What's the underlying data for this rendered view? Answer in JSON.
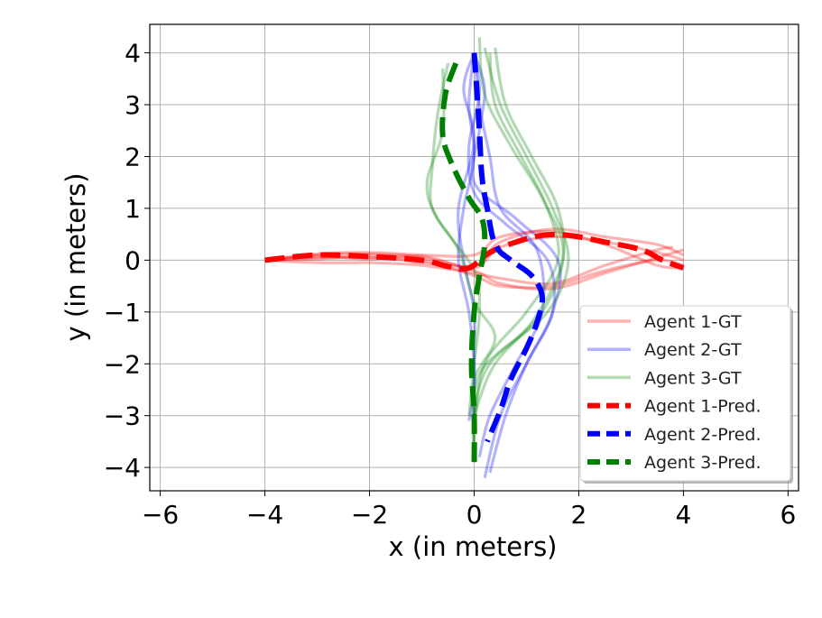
{
  "chart_data": {
    "type": "line",
    "title": "",
    "xlabel": "x (in meters)",
    "ylabel": "y (in meters)",
    "xlim": [
      -6.2,
      6.2
    ],
    "ylim": [
      -4.45,
      4.55
    ],
    "xticks": [
      -6,
      -4,
      -2,
      0,
      2,
      4,
      6
    ],
    "yticks": [
      -4,
      -3,
      -2,
      -1,
      0,
      1,
      2,
      3,
      4
    ],
    "xtick_labels": [
      "−6",
      "−4",
      "−2",
      "0",
      "2",
      "4",
      "6"
    ],
    "ytick_labels": [
      "−4",
      "−3",
      "−2",
      "−1",
      "0",
      "1",
      "2",
      "3",
      "4"
    ],
    "grid": true,
    "legend_position": "lower-right",
    "series": [
      {
        "name": "Agent 1-GT",
        "color": "#ff0000",
        "style": "solid",
        "opacity": 0.3,
        "lines": [
          [
            [
              -4,
              0
            ],
            [
              -3,
              0.1
            ],
            [
              -2,
              0.12
            ],
            [
              -1,
              0.05
            ],
            [
              0,
              -0.2
            ],
            [
              0.5,
              -0.45
            ],
            [
              1.5,
              -0.55
            ],
            [
              2.5,
              -0.25
            ],
            [
              3.5,
              0.05
            ],
            [
              4,
              0.2
            ]
          ],
          [
            [
              -4,
              0
            ],
            [
              -3,
              0.05
            ],
            [
              -2,
              0.05
            ],
            [
              -1,
              0
            ],
            [
              0,
              -0.3
            ],
            [
              0.5,
              -0.5
            ],
            [
              1.5,
              -0.5
            ],
            [
              2.5,
              -0.2
            ],
            [
              3.5,
              0
            ],
            [
              4,
              -0.1
            ]
          ],
          [
            [
              -4,
              0
            ],
            [
              -3,
              0.02
            ],
            [
              -2,
              0.08
            ],
            [
              -1,
              -0.05
            ],
            [
              0,
              -0.1
            ],
            [
              0.5,
              0.35
            ],
            [
              1.5,
              0.6
            ],
            [
              2.5,
              0.45
            ],
            [
              3.5,
              0.3
            ],
            [
              4,
              0.1
            ]
          ],
          [
            [
              -4,
              0
            ],
            [
              -3,
              0.08
            ],
            [
              -2,
              0.02
            ],
            [
              -1,
              0.08
            ],
            [
              0,
              -0.15
            ],
            [
              0.5,
              0.25
            ],
            [
              1.5,
              0.45
            ],
            [
              2.5,
              0.35
            ],
            [
              3.5,
              0.15
            ],
            [
              4,
              0
            ]
          ],
          [
            [
              -4,
              0
            ],
            [
              -3,
              -0.05
            ],
            [
              -2,
              -0.05
            ],
            [
              -1,
              -0.1
            ],
            [
              0,
              -0.25
            ],
            [
              0.5,
              -0.35
            ],
            [
              1.5,
              -0.45
            ],
            [
              2.5,
              -0.1
            ],
            [
              3.5,
              0.2
            ],
            [
              3.8,
              0.25
            ]
          ],
          [
            [
              -4,
              0
            ],
            [
              -3,
              0.12
            ],
            [
              -2,
              0.15
            ],
            [
              -1,
              0.1
            ],
            [
              0,
              0.1
            ],
            [
              0.5,
              0.45
            ],
            [
              1.5,
              0.55
            ],
            [
              2.5,
              0.3
            ],
            [
              3.5,
              -0.1
            ],
            [
              4,
              -0.15
            ]
          ]
        ]
      },
      {
        "name": "Agent 2-GT",
        "color": "#0000ff",
        "style": "solid",
        "opacity": 0.3,
        "lines": [
          [
            [
              0,
              4
            ],
            [
              0.1,
              3.2
            ],
            [
              -0.1,
              2.2
            ],
            [
              0,
              1.3
            ],
            [
              0.6,
              0.7
            ],
            [
              1.4,
              0
            ],
            [
              1.5,
              -1
            ],
            [
              1,
              -2
            ],
            [
              0.6,
              -3
            ],
            [
              0.3,
              -4.1
            ]
          ],
          [
            [
              0,
              4
            ],
            [
              -0.1,
              3
            ],
            [
              0,
              2
            ],
            [
              -0.2,
              1
            ],
            [
              -0.3,
              0
            ],
            [
              -0.1,
              -1
            ],
            [
              0,
              -2
            ],
            [
              0,
              -2.5
            ],
            [
              -0.1,
              -3.1
            ]
          ],
          [
            [
              0,
              4
            ],
            [
              0.2,
              3.3
            ],
            [
              0.1,
              2.5
            ],
            [
              0,
              1.5
            ],
            [
              0.8,
              0.8
            ],
            [
              1.6,
              0
            ],
            [
              1.5,
              -1
            ],
            [
              1,
              -2
            ],
            [
              0.5,
              -3
            ],
            [
              0.2,
              -4.2
            ]
          ],
          [
            [
              0,
              4
            ],
            [
              -0.2,
              3.3
            ],
            [
              0,
              2.3
            ],
            [
              -0.3,
              1
            ],
            [
              -0.2,
              0
            ],
            [
              0,
              -1
            ],
            [
              0,
              -2
            ],
            [
              0,
              -3
            ]
          ],
          [
            [
              0,
              4
            ],
            [
              0.1,
              3
            ],
            [
              0.3,
              2
            ],
            [
              0.5,
              1
            ],
            [
              1.2,
              0.2
            ],
            [
              1.3,
              -1
            ],
            [
              0.8,
              -2
            ],
            [
              0.3,
              -3
            ],
            [
              0.1,
              -3.8
            ]
          ]
        ]
      },
      {
        "name": "Agent 3-GT",
        "color": "#008000",
        "style": "solid",
        "opacity": 0.3,
        "lines": [
          [
            [
              -0.5,
              3.8
            ],
            [
              -0.7,
              2.8
            ],
            [
              -0.8,
              1.8
            ],
            [
              -0.8,
              1
            ],
            [
              -0.3,
              0.2
            ],
            [
              0,
              -0.8
            ],
            [
              0.4,
              -1.5
            ],
            [
              0,
              -2.3
            ],
            [
              0,
              -3.2
            ],
            [
              0,
              -3.8
            ]
          ],
          [
            [
              0.2,
              4.1
            ],
            [
              0.5,
              3
            ],
            [
              1,
              2
            ],
            [
              1.5,
              1
            ],
            [
              1.8,
              0
            ],
            [
              1.4,
              -1
            ],
            [
              0.3,
              -2
            ],
            [
              0,
              -3
            ],
            [
              0,
              -3.8
            ]
          ],
          [
            [
              0.4,
              4.1
            ],
            [
              0.6,
              3
            ],
            [
              1.1,
              2
            ],
            [
              1.6,
              1
            ],
            [
              1.7,
              0
            ],
            [
              1.3,
              -1
            ],
            [
              0.4,
              -2
            ],
            [
              0,
              -3
            ]
          ],
          [
            [
              0.3,
              4
            ],
            [
              0.4,
              3
            ],
            [
              0.9,
              2
            ],
            [
              1.4,
              1
            ],
            [
              1.6,
              0
            ],
            [
              1,
              -1
            ],
            [
              0.2,
              -2
            ],
            [
              0,
              -3.3
            ]
          ],
          [
            [
              -0.6,
              3.7
            ],
            [
              -0.6,
              2.5
            ],
            [
              -0.9,
              1.5
            ],
            [
              -0.7,
              0.8
            ],
            [
              0,
              -0.2
            ],
            [
              0.1,
              -1
            ],
            [
              0,
              -2
            ],
            [
              -0.1,
              -3
            ]
          ],
          [
            [
              0.1,
              4.3
            ],
            [
              0.2,
              3.2
            ],
            [
              0.7,
              2.2
            ],
            [
              1.3,
              1.2
            ],
            [
              1.7,
              0.1
            ],
            [
              1.1,
              -1.2
            ],
            [
              0.1,
              -2.2
            ],
            [
              0,
              -3.5
            ]
          ]
        ]
      },
      {
        "name": "Agent 1-Pred.",
        "color": "#ff0000",
        "style": "dashed",
        "opacity": 1,
        "lines": [
          [
            [
              -4,
              0
            ],
            [
              -3,
              0.1
            ],
            [
              -2,
              0.07
            ],
            [
              -1,
              0
            ],
            [
              -0.5,
              -0.12
            ],
            [
              -0.1,
              -0.15
            ],
            [
              0.3,
              0.15
            ],
            [
              0.8,
              0.35
            ],
            [
              1.3,
              0.48
            ],
            [
              1.8,
              0.48
            ],
            [
              2.5,
              0.35
            ],
            [
              3.2,
              0.2
            ],
            [
              3.6,
              0
            ],
            [
              4,
              -0.15
            ]
          ]
        ]
      },
      {
        "name": "Agent 2-Pred.",
        "color": "#0000ff",
        "style": "dashed",
        "opacity": 1,
        "lines": [
          [
            [
              0,
              4
            ],
            [
              0.05,
              3.3
            ],
            [
              0.1,
              2.5
            ],
            [
              0.15,
              1.6
            ],
            [
              0.25,
              1
            ],
            [
              0.4,
              0.3
            ],
            [
              0.7,
              0
            ],
            [
              1.1,
              -0.3
            ],
            [
              1.3,
              -0.7
            ],
            [
              1.2,
              -1.2
            ],
            [
              1,
              -1.7
            ],
            [
              0.7,
              -2.3
            ],
            [
              0.5,
              -2.9
            ],
            [
              0.25,
              -3.5
            ]
          ]
        ]
      },
      {
        "name": "Agent 3-Pred.",
        "color": "#008000",
        "style": "dashed",
        "opacity": 1,
        "lines": [
          [
            [
              -0.35,
              3.8
            ],
            [
              -0.55,
              3.2
            ],
            [
              -0.6,
              2.4
            ],
            [
              -0.4,
              1.8
            ],
            [
              -0.1,
              1.2
            ],
            [
              0.15,
              0.8
            ],
            [
              0.2,
              0.3
            ],
            [
              0.1,
              -0.3
            ],
            [
              0,
              -1
            ],
            [
              -0.05,
              -2
            ],
            [
              0,
              -3
            ],
            [
              0,
              -4
            ]
          ]
        ]
      }
    ]
  }
}
